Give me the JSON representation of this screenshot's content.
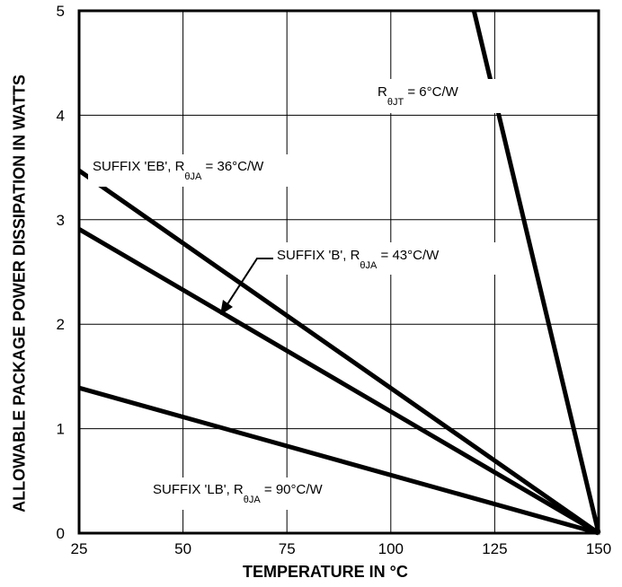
{
  "chart_data": {
    "type": "line",
    "xlabel": "TEMPERATURE IN °C",
    "ylabel": "ALLOWABLE PACKAGE POWER DISSIPATION IN WATTS",
    "xlim": [
      25,
      150
    ],
    "ylim": [
      0,
      5
    ],
    "x_ticks": [
      25,
      50,
      75,
      100,
      125,
      150
    ],
    "y_ticks": [
      0,
      1,
      2,
      3,
      4,
      5
    ],
    "grid": true,
    "series": [
      {
        "name": "SUFFIX 'EB', RθJA = 36°C/W",
        "x": [
          25,
          150
        ],
        "y": [
          3.47,
          0
        ],
        "color": "#000000"
      },
      {
        "name": "SUFFIX 'B', RθJA = 43°C/W",
        "x": [
          25,
          150
        ],
        "y": [
          2.91,
          0
        ],
        "color": "#000000"
      },
      {
        "name": "SUFFIX 'LB', RθJA = 90°C/W",
        "x": [
          25,
          150
        ],
        "y": [
          1.39,
          0
        ],
        "color": "#000000"
      },
      {
        "name": "RθJT = 6°C/W",
        "x": [
          120,
          150
        ],
        "y": [
          5,
          0
        ],
        "color": "#000000"
      }
    ],
    "annotations": [
      {
        "main": "R",
        "sub": "θJT",
        "rest": " = 6°C/W"
      },
      {
        "main": "SUFFIX 'EB', R",
        "sub": "θJA",
        "rest": " = 36°C/W"
      },
      {
        "main": "SUFFIX 'B', R",
        "sub": "θJA",
        "rest": " = 43°C/W"
      },
      {
        "main": "SUFFIX 'LB', R",
        "sub": "θJA",
        "rest": " = 90°C/W"
      }
    ]
  }
}
